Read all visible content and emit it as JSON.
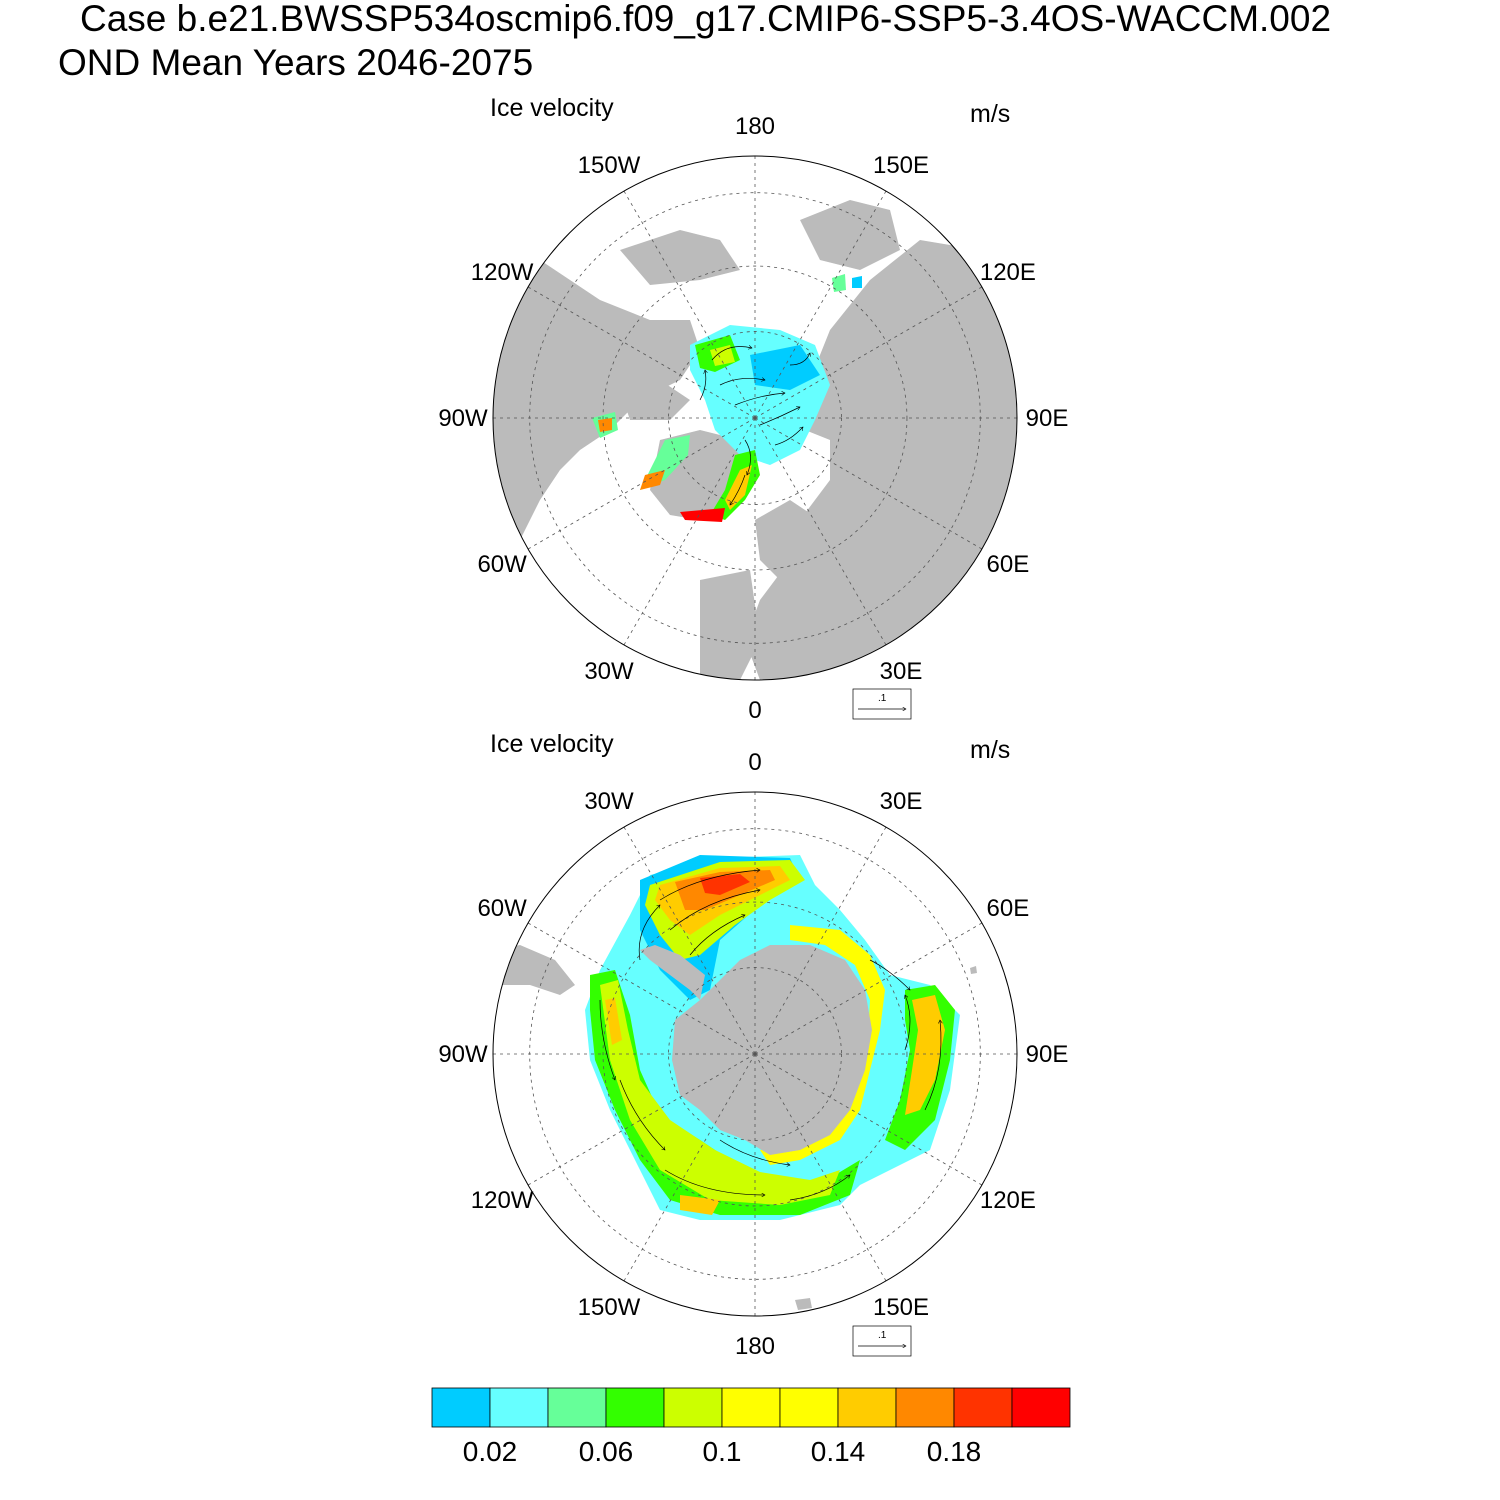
{
  "header": {
    "case_line": "Case b.e21.BWSSP534oscmip6.f09_g17.CMIP6-SSP5-3.4OS-WACCM.002",
    "period_line": "OND Mean   Years 2046-2075"
  },
  "panels": [
    {
      "id": "north",
      "title": "Ice velocity",
      "units": "m/s",
      "lon_labels": [
        {
          "text": "180",
          "lon": 180
        },
        {
          "text": "150E",
          "lon": 150
        },
        {
          "text": "120E",
          "lon": 120
        },
        {
          "text": "90E",
          "lon": 90
        },
        {
          "text": "60E",
          "lon": 60
        },
        {
          "text": "30E",
          "lon": 30
        },
        {
          "text": "0",
          "lon": 0
        },
        {
          "text": "30W",
          "lon": -30
        },
        {
          "text": "60W",
          "lon": -60
        },
        {
          "text": "90W",
          "lon": -90
        },
        {
          "text": "120W",
          "lon": -120
        },
        {
          "text": "150W",
          "lon": -150
        }
      ],
      "reference_vector": {
        "label": ".1",
        "magnitude": 0.1
      }
    },
    {
      "id": "south",
      "title": "Ice velocity",
      "units": "m/s",
      "lon_labels": [
        {
          "text": "0",
          "lon": 0
        },
        {
          "text": "30E",
          "lon": 30
        },
        {
          "text": "60E",
          "lon": 60
        },
        {
          "text": "90E",
          "lon": 90
        },
        {
          "text": "120E",
          "lon": 120
        },
        {
          "text": "150E",
          "lon": 150
        },
        {
          "text": "180",
          "lon": 180
        },
        {
          "text": "150W",
          "lon": -150
        },
        {
          "text": "120W",
          "lon": -120
        },
        {
          "text": "90W",
          "lon": -90
        },
        {
          "text": "60W",
          "lon": -60
        },
        {
          "text": "30W",
          "lon": -30
        }
      ],
      "reference_vector": {
        "label": ".1",
        "magnitude": 0.1
      }
    }
  ],
  "colorbar": {
    "colors": [
      "#00ccff",
      "#66ffff",
      "#66ff99",
      "#33ff00",
      "#ccff00",
      "#ffff00",
      "#ffff00",
      "#ffcc00",
      "#ff8800",
      "#ff3300",
      "#ff0000"
    ],
    "labels": [
      "0.02",
      "0.06",
      "0.1",
      "0.14",
      "0.18"
    ]
  },
  "colors": {
    "land": "#bbbbbb",
    "ocean": "#ffffff"
  }
}
